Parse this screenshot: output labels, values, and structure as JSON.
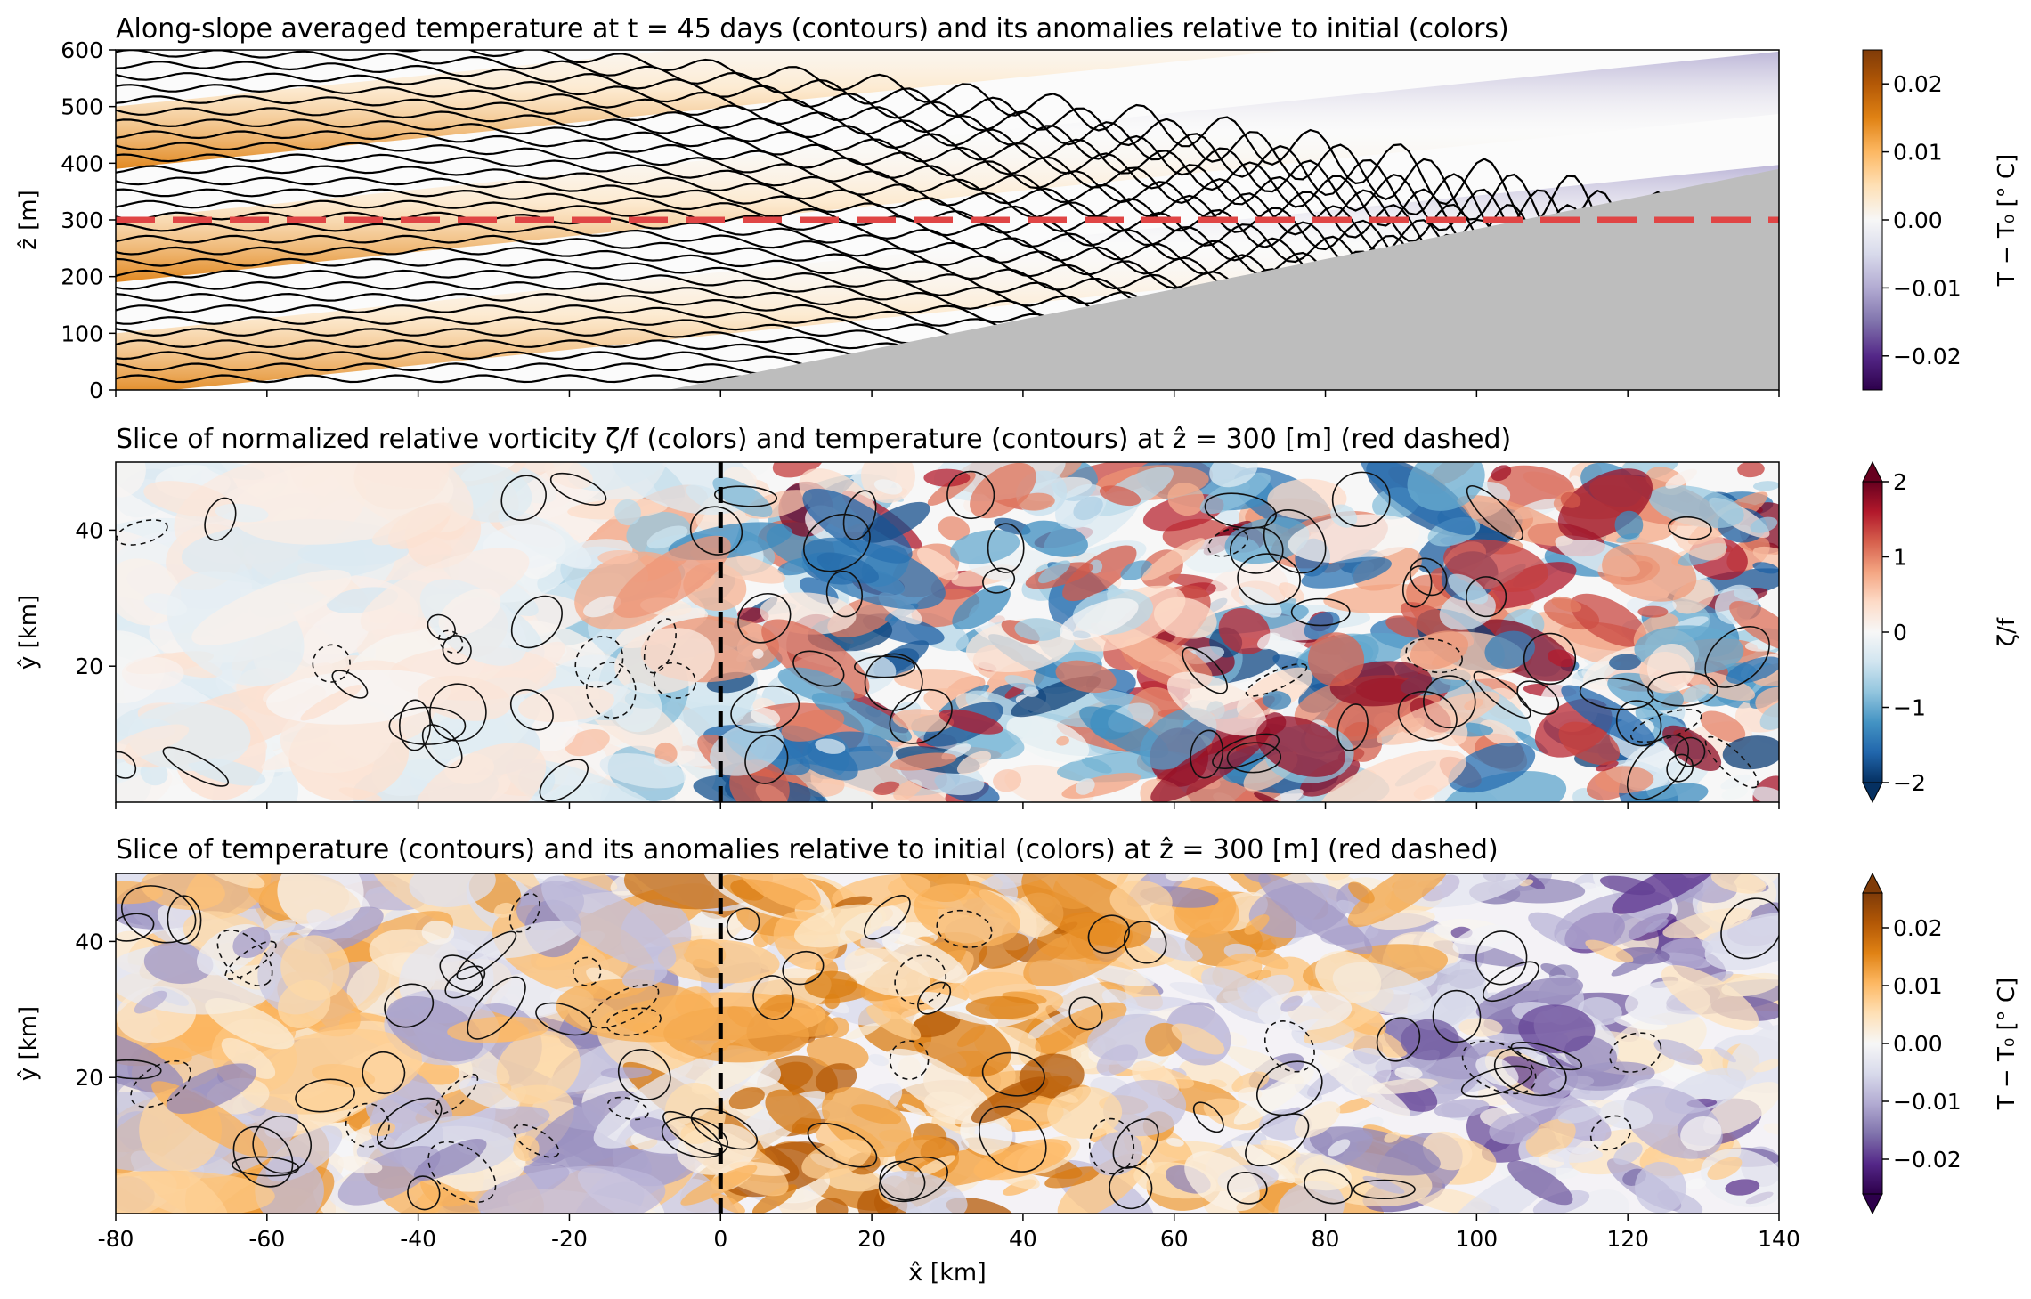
{
  "chart_data": [
    {
      "type": "heatmap",
      "panel": "top",
      "title": "Along-slope averaged temperature at t = 45 days (contours) and its anomalies relative to initial (colors)",
      "xlabel": "",
      "ylabel": "ẑ [m]",
      "xlim": [
        -80,
        140
      ],
      "ylim": [
        0,
        600
      ],
      "y_ticks": [
        "0",
        "100",
        "200",
        "300",
        "400",
        "500",
        "600"
      ],
      "x_ticks": [
        -80,
        -60,
        -40,
        -20,
        0,
        20,
        40,
        60,
        80,
        100,
        120,
        140
      ],
      "reference_line": {
        "y": 300,
        "style": "red dashed"
      },
      "bathymetry": {
        "x": [
          -7,
          140
        ],
        "z": [
          0,
          390
        ],
        "color": "#bdbdbd"
      },
      "anomaly_bands": {
        "z_at_x_minus80": [
          100,
          300,
          500
        ],
        "z_at_x_0": [
          210,
          410,
          610
        ],
        "slope_m_per_km": 1.35
      },
      "colorbar": {
        "label": "T − T₀ [° C]",
        "colormap": "PuOr_r",
        "range": [
          -0.025,
          0.025
        ],
        "ticks": [
          "0.02",
          "0.01",
          "0.00",
          "−0.01",
          "−0.02"
        ],
        "tick_values": [
          0.02,
          0.01,
          0.0,
          -0.01,
          -0.02
        ]
      }
    },
    {
      "type": "heatmap",
      "panel": "middle",
      "title": "Slice of normalized relative vorticity ζ/f (colors) and temperature (contours) at ẑ = 300 [m] (red dashed)",
      "xlabel": "",
      "ylabel": "ŷ [km]",
      "xlim": [
        -80,
        140
      ],
      "ylim": [
        0,
        50
      ],
      "y_ticks": [
        "20",
        "40"
      ],
      "reference_line": {
        "x": 0,
        "style": "black dashed"
      },
      "colorbar": {
        "label": "ζ/f",
        "colormap": "RdBu_r",
        "range": [
          -2,
          2
        ],
        "ticks": [
          "2",
          "1",
          "0",
          "−1",
          "−2"
        ],
        "tick_values": [
          2,
          1,
          0,
          -1,
          -2
        ],
        "extend": "both"
      }
    },
    {
      "type": "heatmap",
      "panel": "bottom",
      "title": "Slice of temperature (contours) and its anomalies relative to initial (colors) at ẑ = 300 [m] (red dashed)",
      "xlabel": "x̂ [km]",
      "ylabel": "ŷ [km]",
      "xlim": [
        -80,
        140
      ],
      "ylim": [
        0,
        50
      ],
      "x_ticks": [
        "-80",
        "-60",
        "-40",
        "-20",
        "0",
        "20",
        "40",
        "60",
        "80",
        "100",
        "120",
        "140"
      ],
      "y_ticks": [
        "20",
        "40"
      ],
      "reference_line": {
        "x": 0,
        "style": "black dashed"
      },
      "colorbar": {
        "label": "T − T₀ [° C]",
        "colormap": "PuOr_r",
        "range": [
          -0.026,
          0.026
        ],
        "ticks": [
          "0.02",
          "0.01",
          "0.00",
          "−0.01",
          "−0.02"
        ],
        "tick_values": [
          0.02,
          0.01,
          0.0,
          -0.01,
          -0.02
        ],
        "extend": "both"
      }
    }
  ],
  "colors": {
    "dashed_red": "#e04545",
    "bathymetry": "#bdbdbd",
    "puor": [
      "#2d004b",
      "#542788",
      "#8073ac",
      "#b2abd2",
      "#d8daeb",
      "#f7f7f7",
      "#fee0b6",
      "#fdb863",
      "#e08214",
      "#b35806",
      "#7f3b08"
    ],
    "rdbu": [
      "#053061",
      "#2166ac",
      "#4393c3",
      "#92c5de",
      "#d1e5f0",
      "#f7f7f7",
      "#fddbc7",
      "#f4a582",
      "#d6604d",
      "#b2182b",
      "#67001f"
    ]
  }
}
